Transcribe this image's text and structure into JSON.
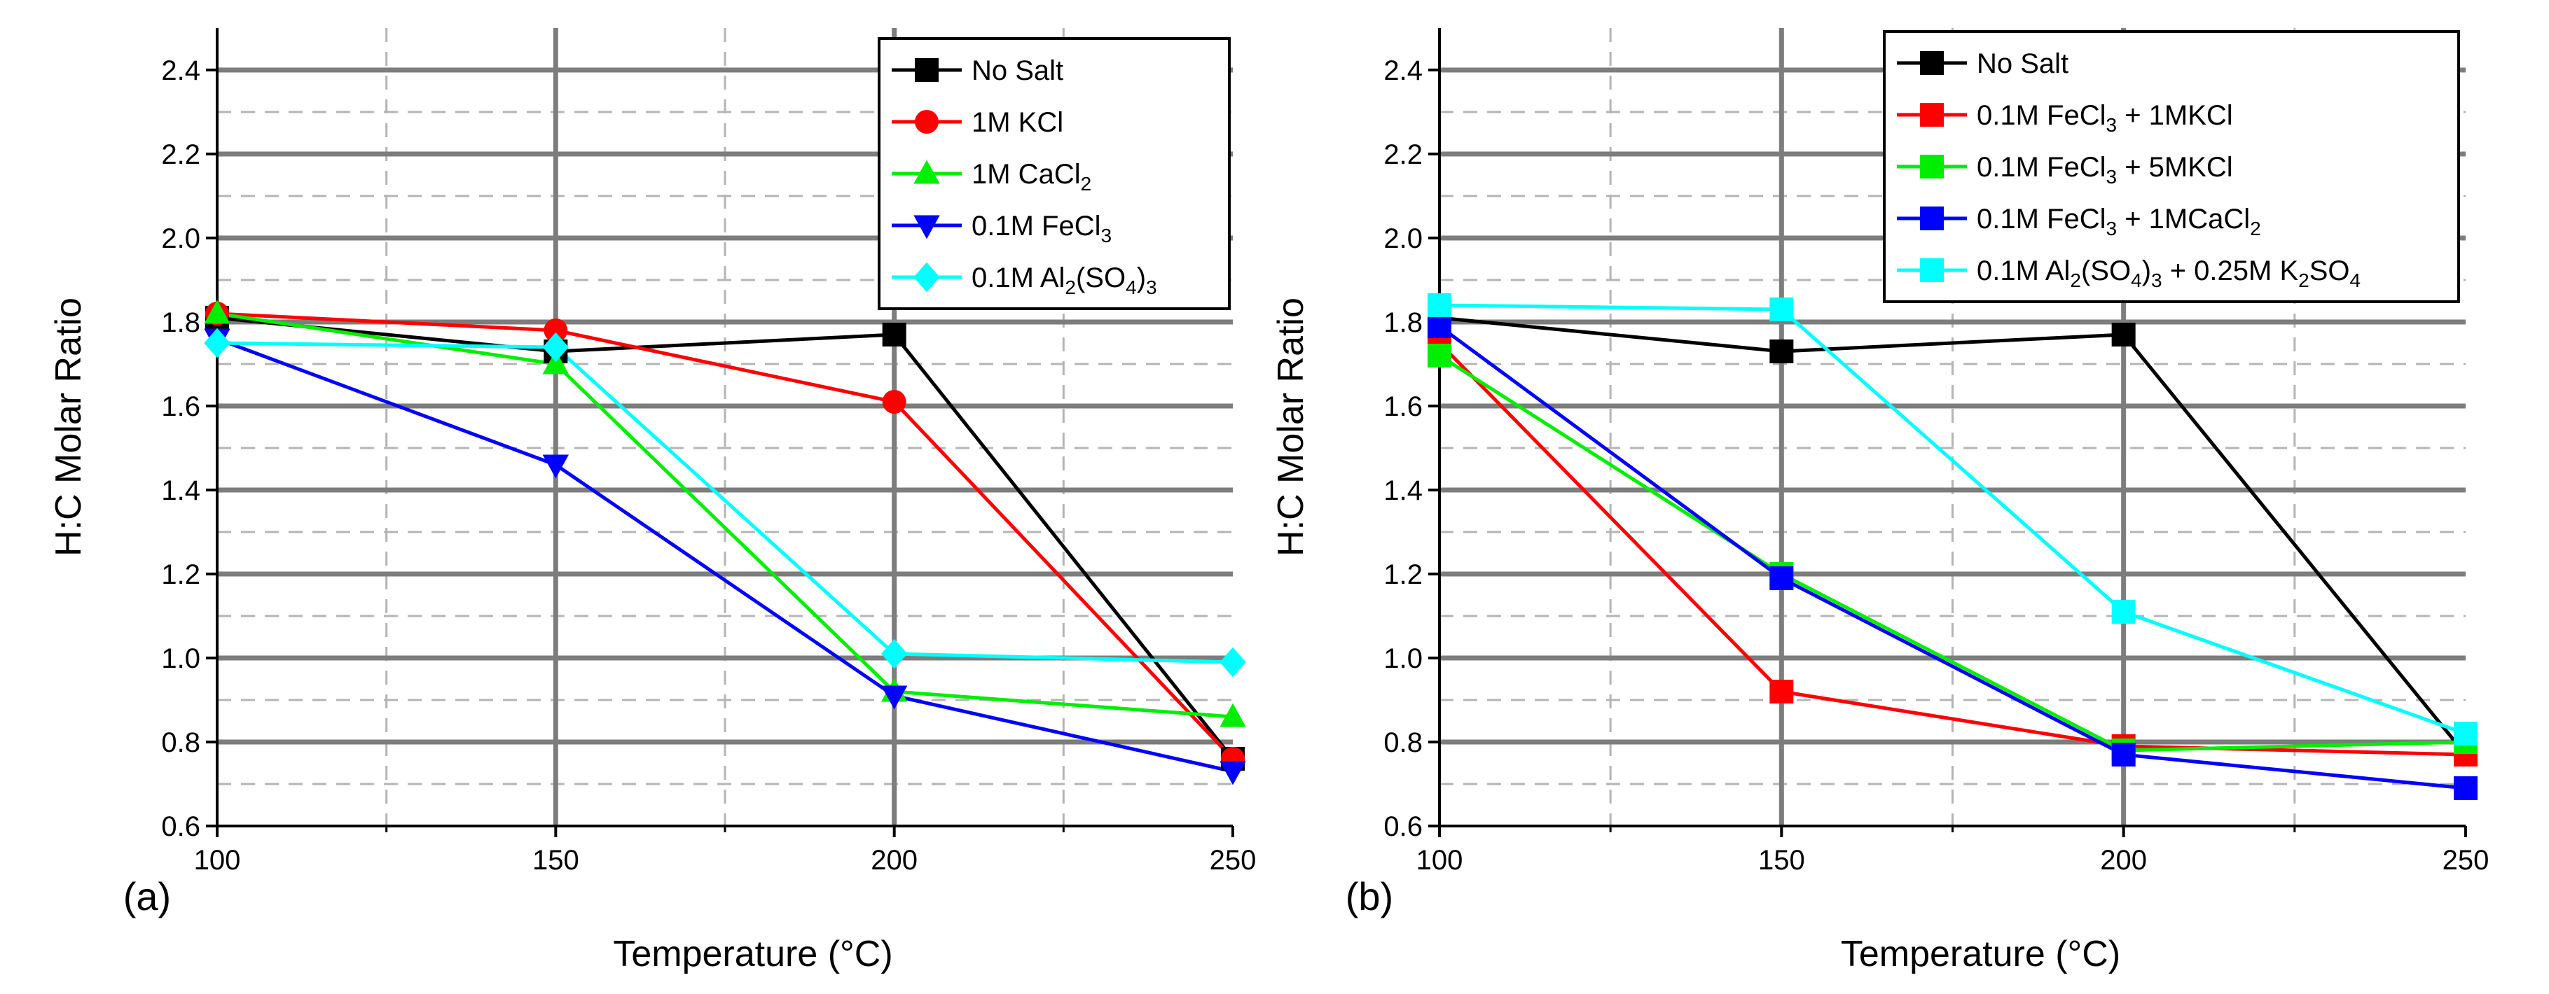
{
  "chart_data": [
    {
      "type": "line",
      "panel_label": "(a)",
      "xlabel": "Temperature (°C)",
      "ylabel": "H:C Molar Ratio",
      "x": [
        100,
        150,
        200,
        250
      ],
      "xlim": [
        100,
        250
      ],
      "ylim": [
        0.6,
        2.5
      ],
      "xticks": [
        "100",
        "150",
        "200",
        "250"
      ],
      "yticks": [
        "0.6",
        "0.8",
        "1.0",
        "1.2",
        "1.4",
        "1.6",
        "1.8",
        "2.0",
        "2.2",
        "2.4"
      ],
      "grid": true,
      "legend_position": "top-right",
      "series": [
        {
          "name": "No Salt",
          "legend": [
            {
              "t": "No Salt"
            }
          ],
          "color": "#000000",
          "marker": "square",
          "values": [
            1.81,
            1.73,
            1.77,
            0.76
          ]
        },
        {
          "name": "1M KCl",
          "legend": [
            {
              "t": "1M KCl"
            }
          ],
          "color": "#ff0000",
          "marker": "circle",
          "values": [
            1.82,
            1.78,
            1.61,
            0.76
          ]
        },
        {
          "name": "1M CaCl2",
          "legend": [
            {
              "t": "1M CaCl"
            },
            {
              "t": "2",
              "sub": true
            }
          ],
          "color": "#00ee00",
          "marker": "triangle-up",
          "values": [
            1.82,
            1.7,
            0.92,
            0.86
          ]
        },
        {
          "name": "0.1M FeCl3",
          "legend": [
            {
              "t": "0.1M FeCl"
            },
            {
              "t": "3",
              "sub": true
            }
          ],
          "color": "#0000ff",
          "marker": "triangle-down",
          "values": [
            1.76,
            1.46,
            0.91,
            0.73
          ]
        },
        {
          "name": "0.1M Al2(SO4)3",
          "legend": [
            {
              "t": "0.1M Al"
            },
            {
              "t": "2",
              "sub": true
            },
            {
              "t": "(SO"
            },
            {
              "t": "4",
              "sub": true
            },
            {
              "t": ")"
            },
            {
              "t": "3",
              "sub": true
            }
          ],
          "color": "#00ffff",
          "marker": "diamond",
          "values": [
            1.75,
            1.74,
            1.01,
            0.99
          ]
        }
      ]
    },
    {
      "type": "line",
      "panel_label": "(b)",
      "xlabel": "Temperature (°C)",
      "ylabel": "H:C Molar Ratio",
      "x": [
        100,
        150,
        200,
        250
      ],
      "xlim": [
        100,
        250
      ],
      "ylim": [
        0.6,
        2.5
      ],
      "xticks": [
        "100",
        "150",
        "200",
        "250"
      ],
      "yticks": [
        "0.6",
        "0.8",
        "1.0",
        "1.2",
        "1.4",
        "1.6",
        "1.8",
        "2.0",
        "2.2",
        "2.4"
      ],
      "grid": true,
      "legend_position": "top-right",
      "series": [
        {
          "name": "No Salt",
          "legend": [
            {
              "t": "No Salt"
            }
          ],
          "color": "#000000",
          "marker": "square",
          "values": [
            1.81,
            1.73,
            1.77,
            0.77
          ]
        },
        {
          "name": "0.1M FeCl3 + 1MKCl",
          "legend": [
            {
              "t": "0.1M FeCl"
            },
            {
              "t": "3",
              "sub": true
            },
            {
              "t": " + 1MKCl"
            }
          ],
          "color": "#ff0000",
          "marker": "square",
          "values": [
            1.75,
            0.92,
            0.79,
            0.77
          ]
        },
        {
          "name": "0.1M FeCl3 + 5MKCl",
          "legend": [
            {
              "t": "0.1M FeCl"
            },
            {
              "t": "3",
              "sub": true
            },
            {
              "t": " + 5MKCl"
            }
          ],
          "color": "#00ee00",
          "marker": "square",
          "values": [
            1.72,
            1.2,
            0.78,
            0.8
          ]
        },
        {
          "name": "0.1M FeCl3 + 1MCaCl2",
          "legend": [
            {
              "t": "0.1M FeCl"
            },
            {
              "t": "3",
              "sub": true
            },
            {
              "t": " + 1MCaCl"
            },
            {
              "t": "2",
              "sub": true
            }
          ],
          "color": "#0000ff",
          "marker": "square",
          "values": [
            1.79,
            1.19,
            0.77,
            0.69
          ]
        },
        {
          "name": "0.1M Al2(SO4)3 + 0.25M K2SO4",
          "legend": [
            {
              "t": "0.1M Al"
            },
            {
              "t": "2",
              "sub": true
            },
            {
              "t": "(SO"
            },
            {
              "t": "4",
              "sub": true
            },
            {
              "t": ")"
            },
            {
              "t": "3",
              "sub": true
            },
            {
              "t": " + 0.25M K"
            },
            {
              "t": "2",
              "sub": true
            },
            {
              "t": "SO"
            },
            {
              "t": "4",
              "sub": true
            }
          ],
          "color": "#00ffff",
          "marker": "square",
          "values": [
            1.84,
            1.83,
            1.11,
            0.82
          ]
        }
      ]
    }
  ]
}
